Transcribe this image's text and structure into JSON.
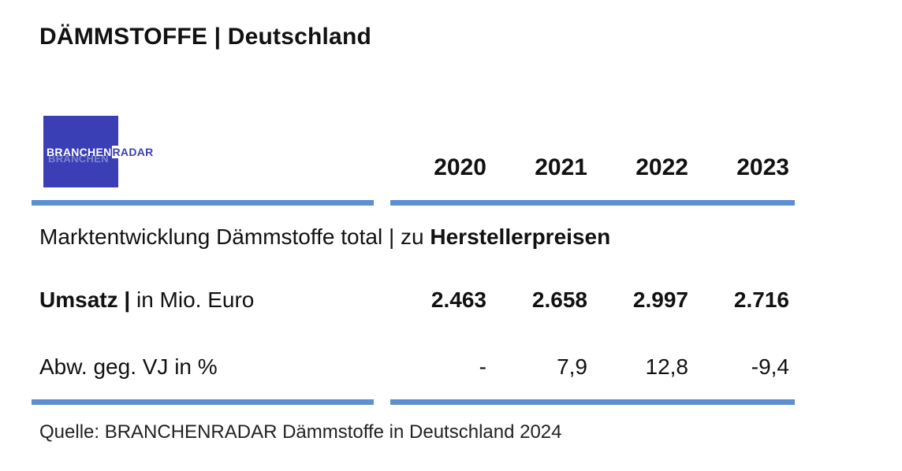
{
  "chart_data": {
    "type": "table",
    "title": "DÄMMSTOFFE | Deutschland",
    "subtitle_regular": "Marktentwicklung Dämmstoffe total | zu ",
    "subtitle_bold": "Herstellerpreisen",
    "columns": [
      "2020",
      "2021",
      "2022",
      "2023"
    ],
    "rows": [
      {
        "label_bold": "Umsatz |",
        "label_regular": " in Mio. Euro",
        "values": [
          "2.463",
          "2.658",
          "2.997",
          "2.716"
        ]
      },
      {
        "label_regular": "Abw. geg. VJ in %",
        "values": [
          "-",
          "7,9",
          "12,8",
          "-9,4"
        ]
      }
    ],
    "source": "Quelle: BRANCHENRADAR Dämmstoffe in Deutschland 2024"
  },
  "logo": {
    "text_part1": "BRANCHEN",
    "text_part2": "RADAR",
    "background_color": "#3a3fb5"
  },
  "colors": {
    "rule": "#5b8fd0",
    "text": "#111111"
  }
}
